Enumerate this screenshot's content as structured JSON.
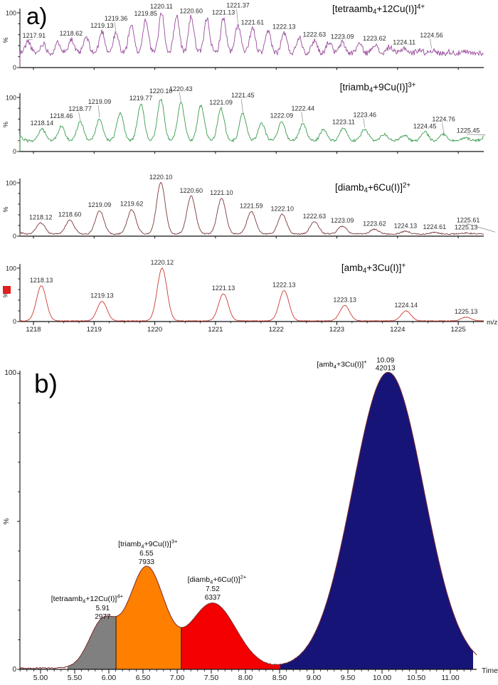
{
  "panels": {
    "a": {
      "label": "a)"
    },
    "b": {
      "label": "b)"
    }
  },
  "marker": {
    "color": "#e02020"
  },
  "chart_data": [
    {
      "id": "mass-spectra",
      "type": "line",
      "xlabel": "m/z",
      "x_ticks": [
        "1218",
        "1219",
        "1220",
        "1221",
        "1222",
        "1223",
        "1224",
        "1225"
      ],
      "x_range": [
        1217.78,
        1225.56
      ],
      "y_range": [
        0,
        100
      ],
      "y_axis": {
        "top": "100",
        "bottom": "0",
        "unit": "%"
      },
      "spectra": [
        {
          "title": {
            "pre": "[tetraamb",
            "sub": "4",
            "mid": "+12Cu(I)]",
            "sup": "4+"
          },
          "color": "#984B9B",
          "baseline_level": 26,
          "noise": 5,
          "sigma": 0.045,
          "seed": 11,
          "peaks": [
            [
              1217.66,
              42
            ],
            [
              1217.91,
              48,
              "1217.91"
            ],
            [
              1218.16,
              44
            ],
            [
              1218.41,
              46
            ],
            [
              1218.62,
              52,
              "1218.62"
            ],
            [
              1218.87,
              55
            ],
            [
              1219.13,
              66,
              "1219.13"
            ],
            [
              1219.36,
              62,
              "1219.36"
            ],
            [
              1219.61,
              78
            ],
            [
              1219.85,
              88,
              "1219.85"
            ],
            [
              1220.11,
              100,
              "1220.11"
            ],
            [
              1220.36,
              95
            ],
            [
              1220.6,
              93,
              "1220.60"
            ],
            [
              1220.86,
              90
            ],
            [
              1221.13,
              90,
              "1221.13"
            ],
            [
              1221.37,
              78,
              "1221.37"
            ],
            [
              1221.61,
              72,
              "1221.61"
            ],
            [
              1221.87,
              66
            ],
            [
              1222.13,
              64,
              "1222.13"
            ],
            [
              1222.38,
              56
            ],
            [
              1222.63,
              50,
              "1222.63"
            ],
            [
              1222.87,
              47
            ],
            [
              1223.09,
              46,
              "1223.09"
            ],
            [
              1223.37,
              44
            ],
            [
              1223.62,
              43,
              "1223.62"
            ],
            [
              1223.87,
              38
            ],
            [
              1224.11,
              36,
              "1224.11"
            ],
            [
              1224.36,
              33
            ],
            [
              1224.56,
              32,
              "1224.56"
            ],
            [
              1224.86,
              29
            ],
            [
              1225.11,
              28
            ],
            [
              1225.36,
              27
            ]
          ]
        },
        {
          "title": {
            "pre": "[triamb",
            "sub": "4",
            "mid": "+9Cu(I)]",
            "sup": "3+"
          },
          "color": "#3A9C50",
          "baseline_level": 20,
          "noise": 2.5,
          "sigma": 0.055,
          "seed": 29,
          "peaks": [
            [
              1217.75,
              30
            ],
            [
              1218.14,
              42,
              "1218.14"
            ],
            [
              1218.46,
              46,
              "1218.46"
            ],
            [
              1218.77,
              56,
              "1218.77"
            ],
            [
              1219.09,
              60,
              "1219.09"
            ],
            [
              1219.43,
              72
            ],
            [
              1219.77,
              88,
              "1219.77"
            ],
            [
              1220.1,
              97,
              "1220.10"
            ],
            [
              1220.43,
              90,
              "1220.43"
            ],
            [
              1220.76,
              85
            ],
            [
              1221.09,
              80,
              "1221.09"
            ],
            [
              1221.45,
              70,
              "1221.45"
            ],
            [
              1221.76,
              52
            ],
            [
              1222.09,
              56,
              "1222.09"
            ],
            [
              1222.44,
              52,
              "1222.44"
            ],
            [
              1222.78,
              40
            ],
            [
              1223.11,
              44,
              "1223.11"
            ],
            [
              1223.46,
              42,
              "1223.46"
            ],
            [
              1223.78,
              32
            ],
            [
              1224.11,
              30
            ],
            [
              1224.45,
              36,
              "1224.45"
            ],
            [
              1224.76,
              32,
              "1224.76"
            ],
            [
              1225.11,
              26
            ],
            [
              1225.45,
              28,
              "1225.45"
            ]
          ]
        },
        {
          "title": {
            "pre": "[diamb",
            "sub": "4",
            "mid": "+6Cu(I)]",
            "sup": "2+"
          },
          "color": "#7E3A3A",
          "baseline_level": 4,
          "noise": 1.2,
          "sigma": 0.07,
          "seed": 47,
          "peaks": [
            [
              1217.7,
              10
            ],
            [
              1218.12,
              25,
              "1218.12"
            ],
            [
              1218.6,
              30,
              "1218.60"
            ],
            [
              1219.09,
              48,
              "1219.09"
            ],
            [
              1219.62,
              50,
              "1219.62"
            ],
            [
              1220.1,
              100,
              "1220.10"
            ],
            [
              1220.6,
              75,
              "1220.60"
            ],
            [
              1221.1,
              71,
              "1221.10"
            ],
            [
              1221.59,
              46,
              "1221.59"
            ],
            [
              1222.1,
              41,
              "1222.10"
            ],
            [
              1222.63,
              27,
              "1222.63"
            ],
            [
              1223.09,
              19,
              "1223.09"
            ],
            [
              1223.62,
              13,
              "1223.62"
            ],
            [
              1224.13,
              9,
              "1224.13"
            ],
            [
              1224.61,
              7,
              "1224.61"
            ],
            [
              1225.13,
              6,
              "1225.13"
            ],
            [
              1225.61,
              5,
              "1225.61"
            ]
          ]
        },
        {
          "title": {
            "pre": "[amb",
            "sub": "4",
            "mid": "+3Cu(I)]",
            "sup": "+"
          },
          "color": "#CC3B33",
          "baseline_level": 1.2,
          "noise": 0.5,
          "sigma": 0.08,
          "seed": 61,
          "peaks": [
            [
              1218.13,
              67,
              "1218.13"
            ],
            [
              1219.13,
              38,
              "1219.13"
            ],
            [
              1220.12,
              100,
              "1220.12"
            ],
            [
              1221.13,
              52,
              "1221.13"
            ],
            [
              1222.13,
              58,
              "1222.13"
            ],
            [
              1223.13,
              30,
              "1223.13"
            ],
            [
              1224.14,
              20,
              "1224.14"
            ],
            [
              1225.13,
              8,
              "1225.13"
            ]
          ]
        }
      ]
    },
    {
      "id": "chromatogram",
      "type": "area",
      "xlabel": "Time",
      "x_ticks": [
        "5.00",
        "5.50",
        "6.00",
        "6.50",
        "7.00",
        "7.50",
        "8.00",
        "8.50",
        "9.00",
        "9.50",
        "10.00",
        "10.50",
        "11.00"
      ],
      "x_range": [
        4.7,
        11.39
      ],
      "y_range": [
        0,
        100
      ],
      "y_axis": {
        "top": "100",
        "bottom": "0",
        "unit": "%"
      },
      "baseline_level": 0.4,
      "noise": 0.3,
      "seed": 5,
      "line_color": "#7B2B2B",
      "boundary_color": "#1a1a1a",
      "peaks": [
        {
          "name": {
            "pre": "[tetraamb",
            "sub": "4",
            "mid": "+12Cu(I)]",
            "sup": "4+"
          },
          "rt": "5.91",
          "area": "2977",
          "center": 5.91,
          "height": 15.5,
          "sigma": 0.2,
          "fill": "#808080",
          "region": [
            5.4,
            6.105
          ],
          "name_dx": -22
        },
        {
          "name": {
            "pre": "[triamb",
            "sub": "4",
            "mid": "+9Cu(I)]",
            "sup": "3+"
          },
          "rt": "6.55",
          "area": "7933",
          "center": 6.55,
          "height": 34,
          "sigma": 0.26,
          "fill": "#FF7F00",
          "region": [
            6.105,
            7.06
          ],
          "name_dx": 2
        },
        {
          "name": {
            "pre": "[diamb",
            "sub": "4",
            "mid": "+6Cu(I)]",
            "sup": "2+"
          },
          "rt": "7.52",
          "area": "6337",
          "center": 7.52,
          "height": 22,
          "sigma": 0.34,
          "fill": "#F40000",
          "region": [
            7.06,
            8.51
          ],
          "name_dx": 6
        },
        {
          "name": {
            "pre": "[amb",
            "sub": "4",
            "mid": "+3Cu(I)]",
            "sup": "+"
          },
          "rt": "10.09",
          "area": "42013",
          "center": 10.09,
          "height": 100,
          "sigma": 0.52,
          "fill": "#171478",
          "region": [
            8.51,
            11.33
          ],
          "label_style": "side"
        }
      ]
    }
  ]
}
